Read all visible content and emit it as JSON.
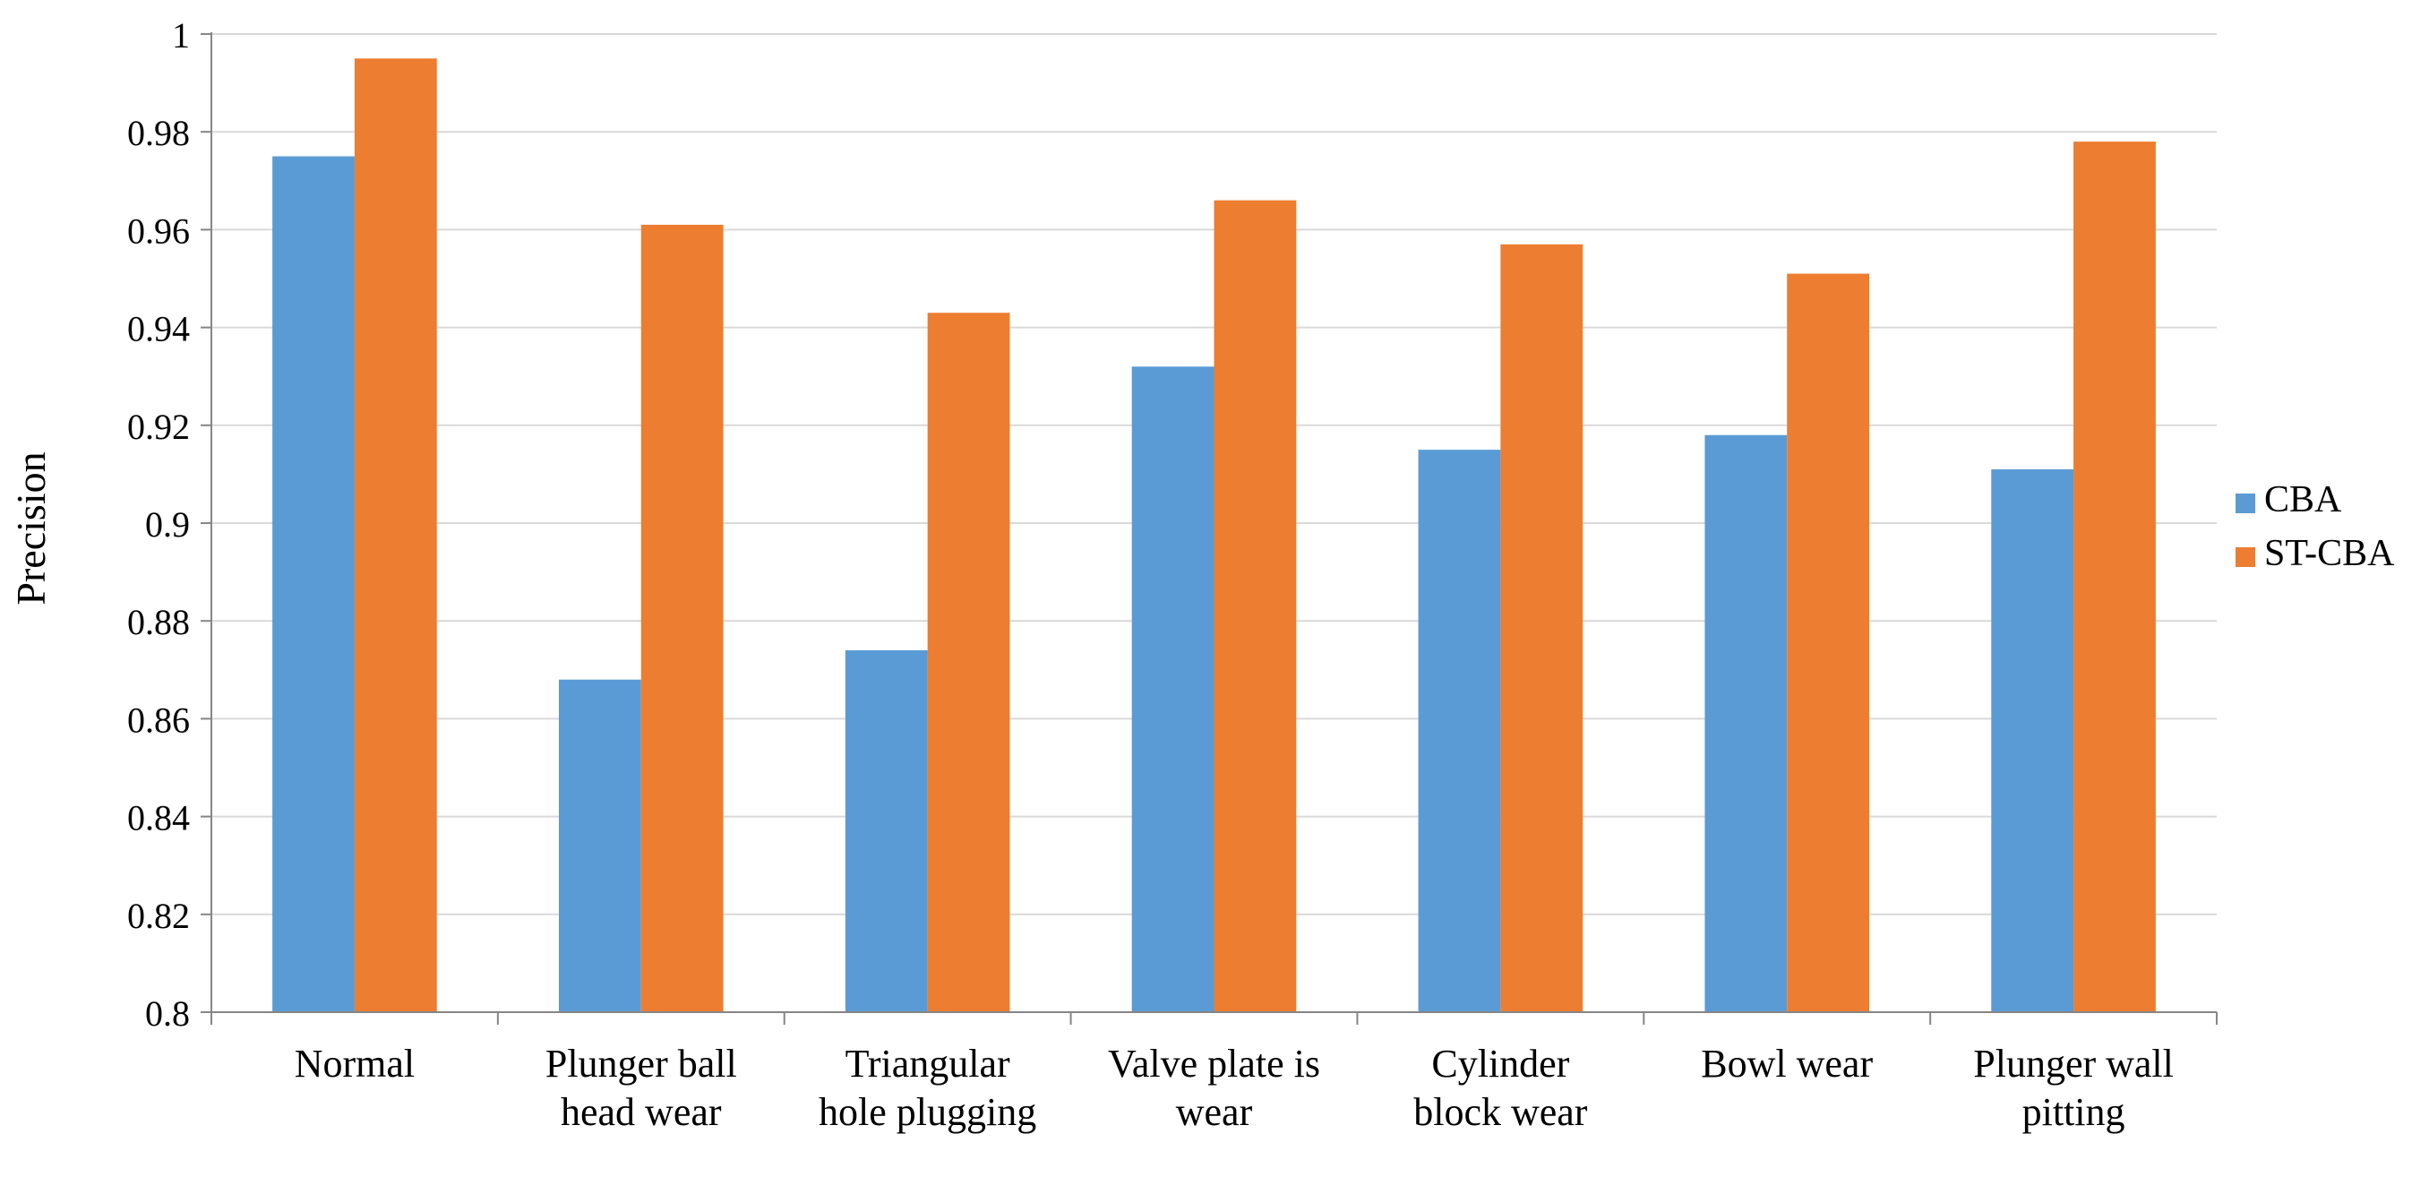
{
  "chart_data": {
    "type": "bar",
    "title": "",
    "xlabel": "",
    "ylabel": "Precision",
    "ylim": [
      0.8,
      1.0
    ],
    "ytick_step": 0.02,
    "y_ticks": [
      "0.8",
      "0.82",
      "0.84",
      "0.86",
      "0.88",
      "0.9",
      "0.92",
      "0.94",
      "0.96",
      "0.98",
      "1"
    ],
    "grid": "horizontal",
    "legend_position": "right",
    "categories": [
      [
        "Normal"
      ],
      [
        "Plunger ball",
        "head wear"
      ],
      [
        "Triangular",
        "hole plugging"
      ],
      [
        "Valve plate is",
        "wear"
      ],
      [
        "Cylinder",
        "block wear"
      ],
      [
        "Bowl wear"
      ],
      [
        "Plunger wall",
        "pitting"
      ]
    ],
    "series": [
      {
        "name": "CBA",
        "color": "#5b9bd5",
        "values": [
          0.975,
          0.868,
          0.874,
          0.932,
          0.915,
          0.918,
          0.911
        ]
      },
      {
        "name": "ST-CBA",
        "color": "#ed7d31",
        "values": [
          0.995,
          0.961,
          0.943,
          0.966,
          0.957,
          0.951,
          0.978
        ]
      }
    ]
  }
}
